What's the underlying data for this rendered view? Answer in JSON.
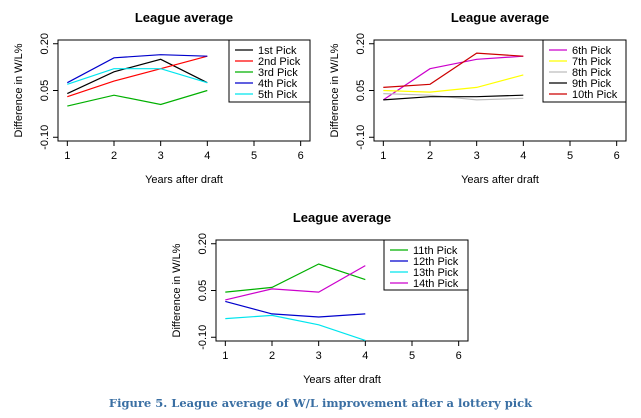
{
  "caption": "Figure 5. League average of W/L improvement after a lottery pick",
  "chart_data": [
    {
      "type": "line",
      "title": "League average",
      "xlabel": "Years after draft",
      "ylabel": "Difference in W/L%",
      "xlim": [
        1,
        6
      ],
      "ylim": [
        -0.1,
        0.2
      ],
      "xticks": [
        "1",
        "2",
        "3",
        "4",
        "5",
        "6"
      ],
      "yticks": [
        "-0.10",
        "0.05",
        "0.20"
      ],
      "yticks_values": [
        -0.1,
        0.05,
        0.2
      ],
      "legend_position": "top-right",
      "x": [
        1,
        2,
        3,
        4
      ],
      "series": [
        {
          "name": "1st Pick",
          "color": "#000000",
          "values": [
            0.04,
            0.11,
            0.15,
            0.075
          ]
        },
        {
          "name": "2nd Pick",
          "color": "#ff0000",
          "values": [
            0.03,
            0.08,
            0.12,
            0.16
          ]
        },
        {
          "name": "3rd Pick",
          "color": "#00b000",
          "values": [
            0.0,
            0.035,
            0.005,
            0.05
          ]
        },
        {
          "name": "4th Pick",
          "color": "#0000cc",
          "values": [
            0.075,
            0.155,
            0.165,
            0.16
          ]
        },
        {
          "name": "5th Pick",
          "color": "#00e5ee",
          "values": [
            0.07,
            0.12,
            0.12,
            0.075
          ]
        }
      ]
    },
    {
      "type": "line",
      "title": "League average",
      "xlabel": "Years after draft",
      "ylabel": "Difference in W/L%",
      "xlim": [
        1,
        6
      ],
      "ylim": [
        -0.1,
        0.2
      ],
      "xticks": [
        "1",
        "2",
        "3",
        "4",
        "5",
        "6"
      ],
      "yticks": [
        "-0.10",
        "0.05",
        "0.20"
      ],
      "yticks_values": [
        -0.1,
        0.05,
        0.2
      ],
      "legend_position": "top-right",
      "x": [
        1,
        2,
        3,
        4
      ],
      "series": [
        {
          "name": "6th Pick",
          "color": "#cc00cc",
          "values": [
            0.02,
            0.12,
            0.15,
            0.16
          ]
        },
        {
          "name": "7th Pick",
          "color": "#ffff00",
          "values": [
            0.05,
            0.045,
            0.06,
            0.1
          ]
        },
        {
          "name": "8th Pick",
          "color": "#bebebe",
          "values": [
            0.04,
            0.035,
            0.02,
            0.025
          ]
        },
        {
          "name": "9th Pick",
          "color": "#000000",
          "values": [
            0.02,
            0.03,
            0.03,
            0.035
          ]
        },
        {
          "name": "10th Pick",
          "color": "#cc0000",
          "values": [
            0.06,
            0.07,
            0.17,
            0.16
          ]
        }
      ]
    },
    {
      "type": "line",
      "title": "League average",
      "xlabel": "Years after draft",
      "ylabel": "Difference in W/L%",
      "xlim": [
        1,
        6
      ],
      "ylim": [
        -0.1,
        0.2
      ],
      "xticks": [
        "1",
        "2",
        "3",
        "4",
        "5",
        "6"
      ],
      "yticks": [
        "-0.10",
        "0.05",
        "0.20"
      ],
      "yticks_values": [
        -0.1,
        0.05,
        0.2
      ],
      "legend_position": "top-right",
      "x": [
        1,
        2,
        3,
        4
      ],
      "series": [
        {
          "name": "11th Pick",
          "color": "#00b000",
          "values": [
            0.045,
            0.06,
            0.135,
            0.085
          ]
        },
        {
          "name": "12th Pick",
          "color": "#0000cc",
          "values": [
            0.015,
            -0.025,
            -0.035,
            -0.025
          ]
        },
        {
          "name": "13th Pick",
          "color": "#00e5ee",
          "values": [
            -0.04,
            -0.03,
            -0.06,
            -0.11
          ]
        },
        {
          "name": "14th Pick",
          "color": "#cc00cc",
          "values": [
            0.02,
            0.055,
            0.045,
            0.13
          ]
        }
      ]
    }
  ]
}
